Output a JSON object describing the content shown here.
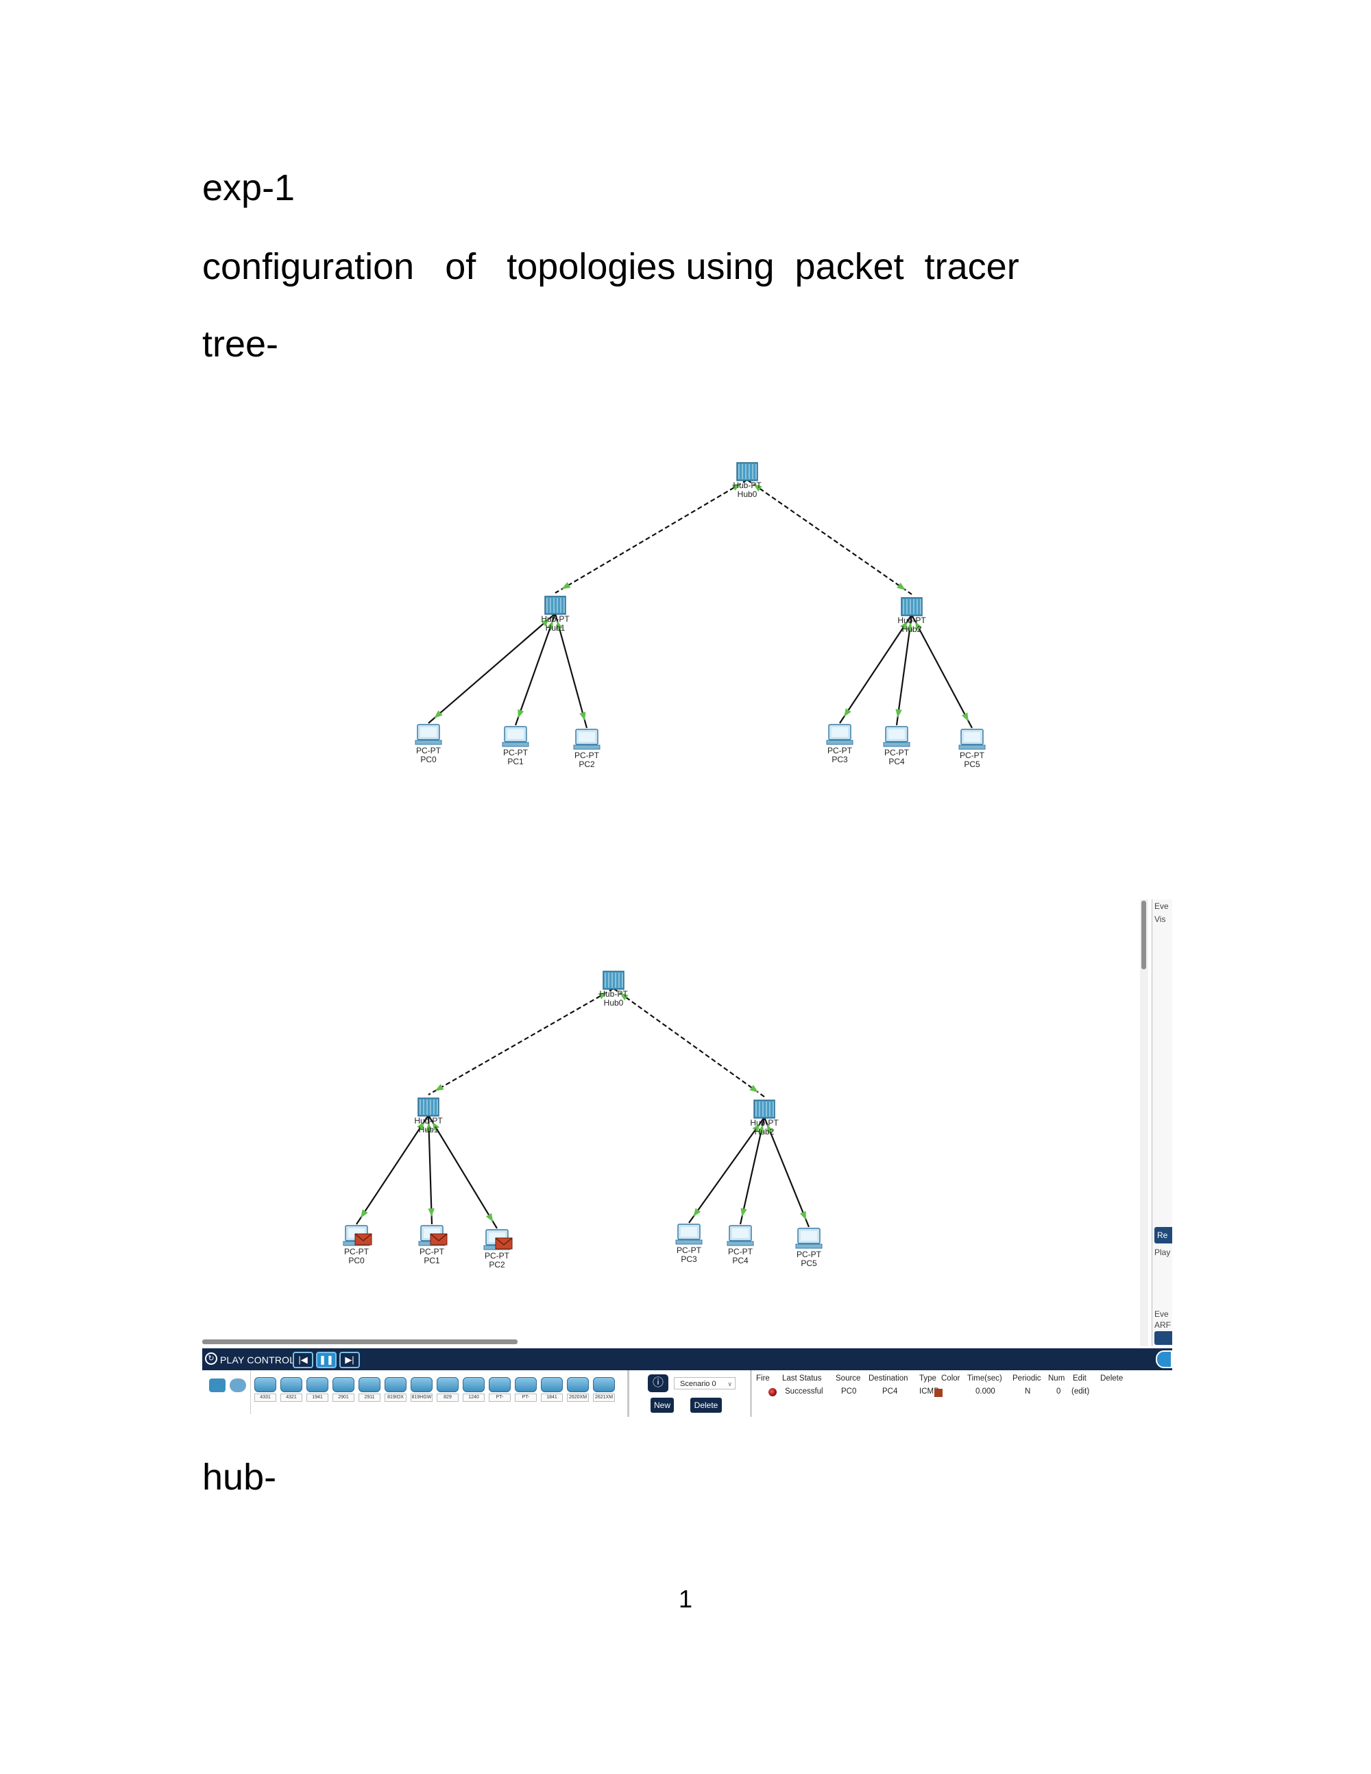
{
  "document": {
    "heading_exp": "exp-1",
    "heading_config": "configuration   of   topologies using  packet  tracer",
    "heading_tree": "tree-",
    "heading_hub": "hub-",
    "page_number": "1"
  },
  "topology": {
    "hubs": [
      {
        "id": "hub0",
        "type": "Hub-PT",
        "name": "Hub0"
      },
      {
        "id": "hub1",
        "type": "Hub-PT",
        "name": "Hub1"
      },
      {
        "id": "hub2",
        "type": "Hub-PT",
        "name": "Hub2"
      }
    ],
    "pcs": [
      {
        "id": "pc0",
        "type": "PC-PT",
        "name": "PC0"
      },
      {
        "id": "pc1",
        "type": "PC-PT",
        "name": "PC1"
      },
      {
        "id": "pc2",
        "type": "PC-PT",
        "name": "PC2"
      },
      {
        "id": "pc3",
        "type": "PC-PT",
        "name": "PC3"
      },
      {
        "id": "pc4",
        "type": "PC-PT",
        "name": "PC4"
      },
      {
        "id": "pc5",
        "type": "PC-PT",
        "name": "PC5"
      }
    ],
    "links": [
      {
        "from": "hub0",
        "to": "hub1",
        "cable": "crossover"
      },
      {
        "from": "hub0",
        "to": "hub2",
        "cable": "crossover"
      },
      {
        "from": "hub1",
        "to": "pc0",
        "cable": "straight"
      },
      {
        "from": "hub1",
        "to": "pc1",
        "cable": "straight"
      },
      {
        "from": "hub1",
        "to": "pc2",
        "cable": "straight"
      },
      {
        "from": "hub2",
        "to": "pc3",
        "cable": "straight"
      },
      {
        "from": "hub2",
        "to": "pc4",
        "cable": "straight"
      },
      {
        "from": "hub2",
        "to": "pc5",
        "cable": "straight"
      }
    ]
  },
  "simulation": {
    "play_controls_label": "PLAY CONTROLS",
    "event_panel": {
      "title_fragment": "Eve",
      "visible_fragment": "Vis",
      "reset_fragment": "Re",
      "play_fragment": "Play",
      "events_fragment": "Eve",
      "arp_fragment": "ARF"
    },
    "device_models": [
      "4331",
      "4321",
      "1941",
      "2901",
      "2911",
      "819IOX",
      "819HGW",
      "829",
      "1240",
      "PT-Router",
      "PT-Empty",
      "1841",
      "2620XM",
      "2621XM"
    ],
    "scenario": {
      "selected": "Scenario 0",
      "new_label": "New",
      "delete_label": "Delete"
    },
    "pdu_table": {
      "headers": [
        "Fire",
        "Last Status",
        "Source",
        "Destination",
        "Type",
        "Color",
        "Time(sec)",
        "Periodic",
        "Num",
        "Edit",
        "Delete"
      ],
      "row": {
        "last_status": "Successful",
        "source": "PC0",
        "destination": "PC4",
        "type": "ICMP",
        "time": "0.000",
        "periodic": "N",
        "num": "0",
        "edit": "(edit)"
      },
      "color": "#a3411f"
    }
  },
  "colors": {
    "link_light": "#5fc04a",
    "hub_blue": "#4a9cc4",
    "bar_navy": "#12294b",
    "envelope": "#c8462a"
  }
}
